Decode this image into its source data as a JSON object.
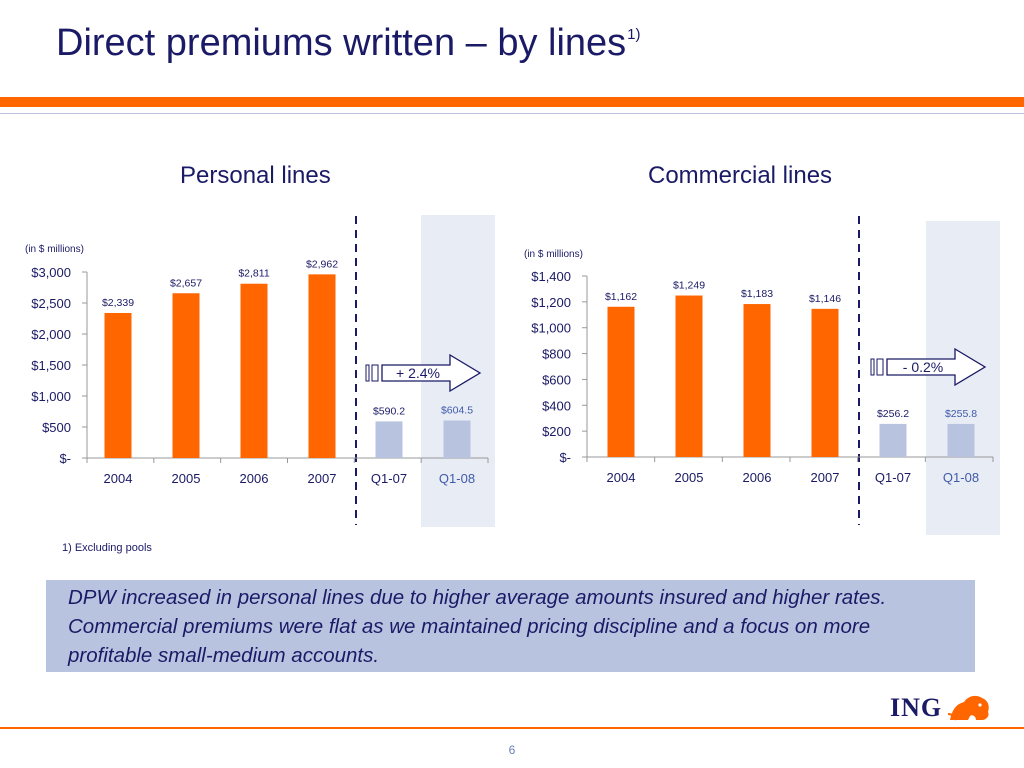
{
  "slide": {
    "title": "Direct premiums written – by lines",
    "title_sup": "1)",
    "footnote": "1) Excluding pools",
    "callout": "DPW increased in personal lines due to higher average amounts insured and higher rates. Commercial premiums were flat as we maintained pricing discipline and a focus on more profitable small-medium accounts.",
    "logo_text": "ING",
    "logo_icon": "lion-icon",
    "page_number": "6",
    "colors": {
      "title": "#1a1a66",
      "accent": "#ff6600",
      "quarter_bar": "#b8c4df",
      "highlight": "#e8ecf5",
      "q108_text": "#3f5ba9"
    }
  },
  "chart_data": [
    {
      "type": "bar",
      "title": "Personal lines",
      "unit_note": "(in $ millions)",
      "categories": [
        "2004",
        "2005",
        "2006",
        "2007",
        "Q1-07",
        "Q1-08"
      ],
      "values": [
        2339,
        2657,
        2811,
        2962,
        590.2,
        604.5
      ],
      "value_labels": [
        "$2,339",
        "$2,657",
        "$2,811",
        "$2,962",
        "$590.2",
        "$604.5"
      ],
      "ylim": [
        0,
        3000
      ],
      "yticks": [
        0,
        500,
        1000,
        1500,
        2000,
        2500,
        3000
      ],
      "ytick_labels": [
        "$-",
        "$500",
        "$1,000",
        "$1,500",
        "$2,000",
        "$2,500",
        "$3,000"
      ],
      "growth_label": "+ 2.4%",
      "grid": false,
      "highlight_category": "Q1-08"
    },
    {
      "type": "bar",
      "title": "Commercial lines",
      "unit_note": "(in $ millions)",
      "categories": [
        "2004",
        "2005",
        "2006",
        "2007",
        "Q1-07",
        "Q1-08"
      ],
      "values": [
        1162,
        1249,
        1183,
        1146,
        256.2,
        255.8
      ],
      "value_labels": [
        "$1,162",
        "$1,249",
        "$1,183",
        "$1,146",
        "$256.2",
        "$255.8"
      ],
      "ylim": [
        0,
        1400
      ],
      "yticks": [
        0,
        200,
        400,
        600,
        800,
        1000,
        1200,
        1400
      ],
      "ytick_labels": [
        "$-",
        "$200",
        "$400",
        "$600",
        "$800",
        "$1,000",
        "$1,200",
        "$1,400"
      ],
      "growth_label": "- 0.2%",
      "grid": false,
      "highlight_category": "Q1-08"
    }
  ]
}
